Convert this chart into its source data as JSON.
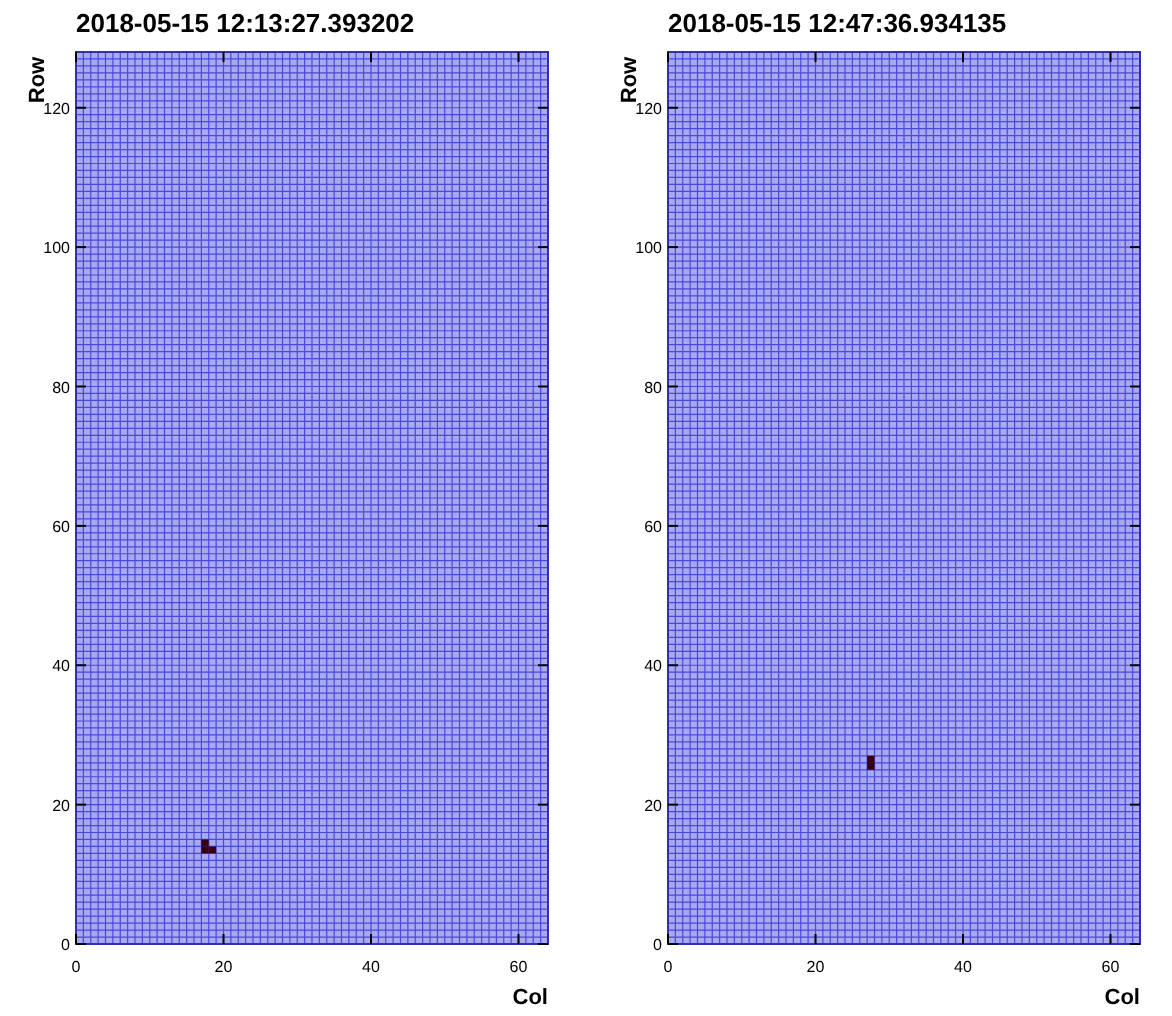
{
  "chart_data": [
    {
      "type": "scatter",
      "title": "2018-05-15 12:13:27.393202",
      "xlabel": "Col",
      "ylabel": "Row",
      "xlim": [
        0,
        64
      ],
      "ylim": [
        0,
        128
      ],
      "xticks": [
        0,
        20,
        40,
        60
      ],
      "yticks": [
        0,
        20,
        40,
        60,
        80,
        100,
        120
      ],
      "grid": true,
      "marker": "square",
      "series": [
        {
          "color": "#3a0010",
          "x": [
            17.5,
            17.5,
            18.5
          ],
          "values": [
            14.5,
            13.5,
            13.5
          ]
        }
      ]
    },
    {
      "type": "scatter",
      "title": "2018-05-15 12:47:36.934135",
      "xlabel": "Col",
      "ylabel": "Row",
      "xlim": [
        0,
        64
      ],
      "ylim": [
        0,
        128
      ],
      "xticks": [
        0,
        20,
        40,
        60
      ],
      "yticks": [
        0,
        20,
        40,
        60,
        80,
        100,
        120
      ],
      "grid": true,
      "marker": "square",
      "series": [
        {
          "color": "#3a0010",
          "x": [
            27.5,
            27.5
          ],
          "values": [
            25.5,
            26.5
          ]
        }
      ]
    }
  ]
}
